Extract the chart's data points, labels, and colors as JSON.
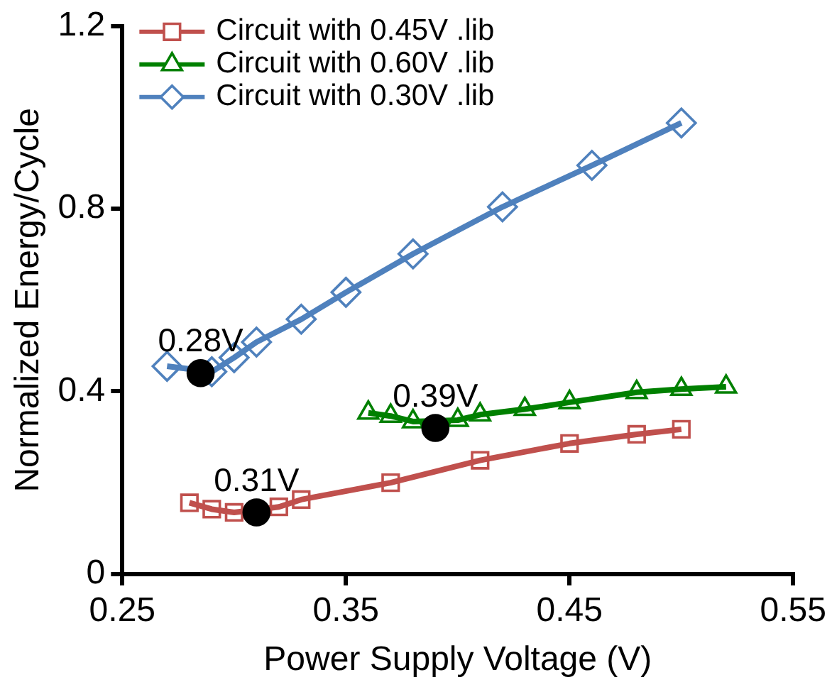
{
  "chart_data": {
    "type": "line",
    "xlabel": "Power Supply Voltage (V)",
    "ylabel": "Normalized Energy/Cycle",
    "xlim": [
      0.25,
      0.55
    ],
    "xticks": [
      0.25,
      0.35,
      0.45,
      0.55
    ],
    "ylim": [
      0,
      1.2
    ],
    "yticks": [
      0,
      0.4,
      0.8,
      1.2
    ],
    "grid": false,
    "legend": "top left",
    "series": [
      {
        "name": "Circuit with 0.45V .lib",
        "color": "#c0504d",
        "marker": "square",
        "x": [
          0.28,
          0.29,
          0.3,
          0.31,
          0.32,
          0.33,
          0.37,
          0.41,
          0.45,
          0.48,
          0.5
        ],
        "values": [
          0.156,
          0.142,
          0.135,
          null,
          0.147,
          0.163,
          0.2,
          0.249,
          0.286,
          0.306,
          0.317
        ]
      },
      {
        "name": "Circuit with 0.60V .lib",
        "color": "#008000",
        "marker": "triangle",
        "x": [
          0.36,
          0.37,
          0.38,
          0.39,
          0.4,
          0.41,
          0.43,
          0.45,
          0.48,
          0.5,
          0.52
        ],
        "values": [
          0.353,
          0.346,
          0.334,
          null,
          0.337,
          0.349,
          0.361,
          0.376,
          0.398,
          0.405,
          0.41
        ]
      },
      {
        "name": "Circuit with 0.30V .lib",
        "color": "#4f81bd",
        "marker": "diamond",
        "x": [
          0.27,
          0.28,
          0.29,
          0.3,
          0.31,
          0.33,
          0.35,
          0.38,
          0.42,
          0.46,
          0.5
        ],
        "values": [
          0.455,
          null,
          0.443,
          0.474,
          0.508,
          0.558,
          0.617,
          0.701,
          0.804,
          0.895,
          0.988
        ]
      },
      {
        "type": "scatter",
        "color": "#000000",
        "marker": "circle",
        "x": [
          0.285,
          0.31,
          0.39
        ],
        "values": [
          0.44,
          0.135,
          0.32
        ]
      }
    ],
    "annotations": [
      {
        "text": "0.28V",
        "x": 0.285,
        "y": 0.44
      },
      {
        "text": "0.31V",
        "x": 0.31,
        "y": 0.135
      },
      {
        "text": "0.39V",
        "x": 0.39,
        "y": 0.32
      }
    ]
  }
}
